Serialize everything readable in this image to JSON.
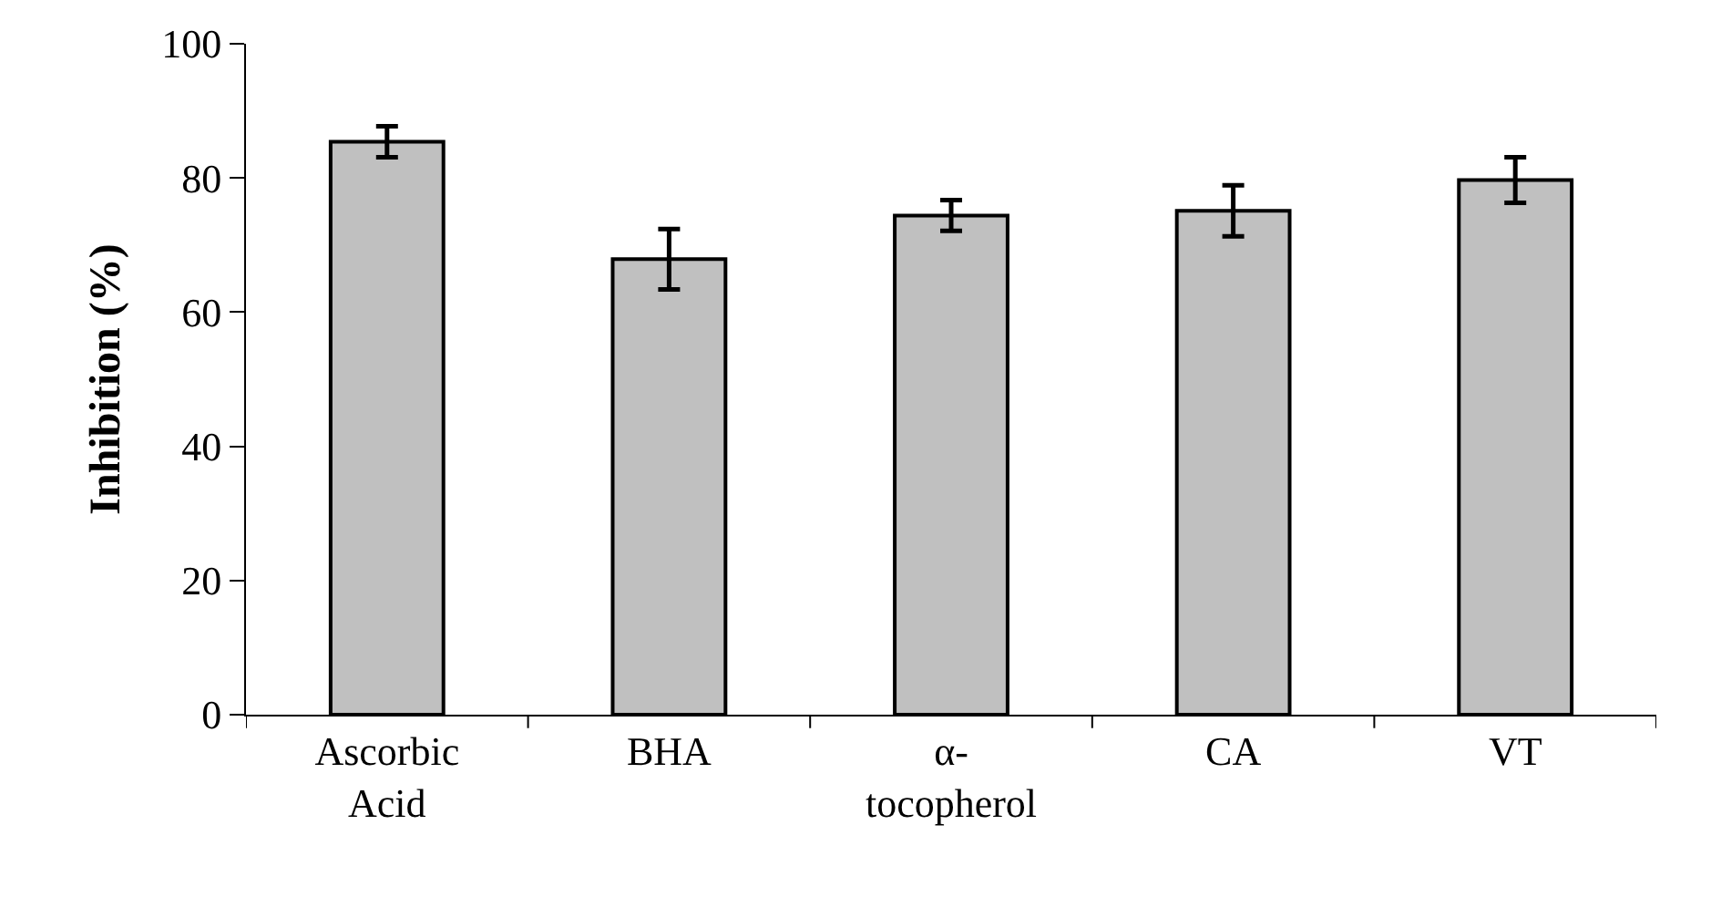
{
  "chart_data": {
    "type": "bar",
    "ylabel": "Inhibition (%)",
    "categories": [
      "Ascorbic Acid",
      "BHA",
      "α-tocopherol",
      "CA",
      "VT"
    ],
    "values": [
      85.4,
      67.9,
      74.4,
      75.1,
      79.7
    ],
    "errors": [
      2.3,
      4.5,
      2.3,
      3.8,
      3.4
    ],
    "color": "#c0c0c0",
    "ylim": [
      0,
      100
    ],
    "yticks": [
      0,
      20,
      40,
      60,
      80,
      100
    ],
    "grid": false,
    "legend": false
  }
}
